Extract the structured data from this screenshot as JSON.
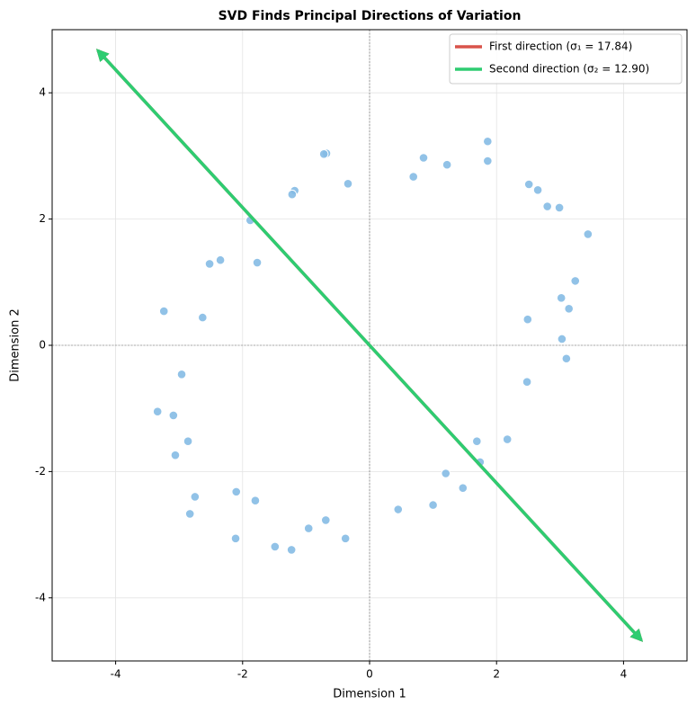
{
  "chart_data": {
    "type": "scatter",
    "title": "SVD Finds Principal Directions of Variation",
    "x_label": "Dimension 1",
    "y_label": "Dimension 2",
    "xlim": [
      -5,
      5
    ],
    "ylim": [
      -5,
      5
    ],
    "xticks": [
      -4,
      -2,
      0,
      2,
      4
    ],
    "yticks": [
      -4,
      -2,
      0,
      2,
      4
    ],
    "grid": true,
    "legend": "upper right",
    "points": {
      "color": "#85bbe4",
      "x": [
        -0.68,
        -0.72,
        -1.18,
        -1.22,
        -0.34,
        0.85,
        0.69,
        1.22,
        1.86,
        1.86,
        2.51,
        2.65,
        2.8,
        2.99,
        3.44,
        3.24,
        3.02,
        3.14,
        2.49,
        3.03,
        3.1,
        2.48,
        2.17,
        1.69,
        1.74,
        1.2,
        1.47,
        1.0,
        0.45,
        -0.38,
        -0.69,
        -0.96,
        -1.49,
        -1.23,
        -2.11,
        -1.8,
        -2.1,
        -2.75,
        -2.83,
        -2.86,
        -3.06,
        -3.09,
        -3.34,
        -2.96,
        -3.24,
        -2.63,
        -2.52,
        -2.35,
        -1.77,
        -1.88
      ],
      "y": [
        3.04,
        3.03,
        2.45,
        2.39,
        2.56,
        2.97,
        2.67,
        2.86,
        3.23,
        2.92,
        2.55,
        2.46,
        2.2,
        2.18,
        1.76,
        1.02,
        0.75,
        0.58,
        0.41,
        0.1,
        -0.21,
        -0.58,
        -1.49,
        -1.52,
        -1.85,
        -2.03,
        -2.26,
        -2.53,
        -2.6,
        -3.06,
        -2.77,
        -2.9,
        -3.19,
        -3.24,
        -3.06,
        -2.46,
        -2.32,
        -2.4,
        -2.67,
        -1.52,
        -1.74,
        -1.11,
        -1.05,
        -0.46,
        0.54,
        0.44,
        1.29,
        1.35,
        1.31,
        1.98
      ]
    },
    "series": [
      {
        "name": "First direction (σ₁ = 17.84)",
        "color": "#d9534a",
        "x": [
          -4.28,
          4.28
        ],
        "y": [
          4.67,
          -4.67
        ]
      },
      {
        "name": "Second direction (σ₂ = 12.90)",
        "color": "#2ecc71",
        "x": [
          -4.28,
          4.28
        ],
        "y": [
          4.67,
          -4.67
        ]
      }
    ]
  }
}
